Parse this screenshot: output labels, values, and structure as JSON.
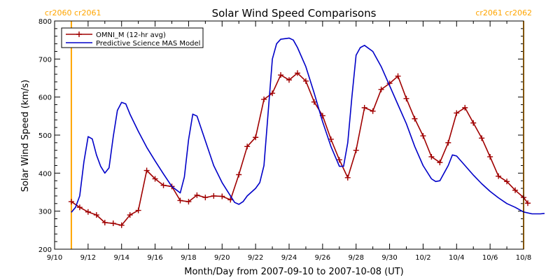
{
  "chart_data": {
    "type": "line",
    "title": "Solar Wind Speed Comparisons",
    "xlabel": "Month/Day from 2007-09-10 to 2007-10-08 (UT)",
    "ylabel": "Solar Wind Speed (km/s)",
    "xlim": [
      "2007-09-10",
      "2007-10-08"
    ],
    "ylim": [
      200,
      800
    ],
    "yticks": [
      200,
      300,
      400,
      500,
      600,
      700,
      800
    ],
    "xticks": [
      {
        "date": "2007-09-10",
        "label": "9/10"
      },
      {
        "date": "2007-09-12",
        "label": "9/12"
      },
      {
        "date": "2007-09-14",
        "label": "9/14"
      },
      {
        "date": "2007-09-16",
        "label": "9/16"
      },
      {
        "date": "2007-09-18",
        "label": "9/18"
      },
      {
        "date": "2007-09-20",
        "label": "9/20"
      },
      {
        "date": "2007-09-22",
        "label": "9/22"
      },
      {
        "date": "2007-09-24",
        "label": "9/24"
      },
      {
        "date": "2007-09-26",
        "label": "9/26"
      },
      {
        "date": "2007-09-28",
        "label": "9/28"
      },
      {
        "date": "2007-09-30",
        "label": "9/30"
      },
      {
        "date": "2007-10-02",
        "label": "10/2"
      },
      {
        "date": "2007-10-04",
        "label": "10/4"
      },
      {
        "date": "2007-10-06",
        "label": "10/6"
      },
      {
        "date": "2007-10-08",
        "label": "10/8"
      }
    ],
    "grid": false,
    "legend_position": "top-left",
    "markers": [
      {
        "date": "2007-09-11 00:00",
        "label": "cr2060 cr2061",
        "color": "#ffa500",
        "label_side": "left"
      },
      {
        "date": "2007-10-08 00:00",
        "label": "cr2061 cr2062",
        "color": "#ffa500",
        "label_side": "right"
      }
    ],
    "series": [
      {
        "name": "OMNI_M (12-hr avg)",
        "color": "#a00000",
        "marker": "plus",
        "points": [
          [
            "2007-09-11 00:00",
            325
          ],
          [
            "2007-09-11 12:00",
            310
          ],
          [
            "2007-09-12 00:00",
            298
          ],
          [
            "2007-09-12 12:00",
            290
          ],
          [
            "2007-09-13 00:00",
            270
          ],
          [
            "2007-09-13 12:00",
            268
          ],
          [
            "2007-09-14 00:00",
            263
          ],
          [
            "2007-09-14 12:00",
            290
          ],
          [
            "2007-09-15 00:00",
            302
          ],
          [
            "2007-09-15 12:00",
            407
          ],
          [
            "2007-09-16 00:00",
            385
          ],
          [
            "2007-09-16 12:00",
            368
          ],
          [
            "2007-09-17 00:00",
            365
          ],
          [
            "2007-09-17 12:00",
            328
          ],
          [
            "2007-09-18 00:00",
            325
          ],
          [
            "2007-09-18 12:00",
            342
          ],
          [
            "2007-09-19 00:00",
            336
          ],
          [
            "2007-09-19 12:00",
            340
          ],
          [
            "2007-09-20 00:00",
            339
          ],
          [
            "2007-09-20 12:00",
            330
          ],
          [
            "2007-09-21 00:00",
            396
          ],
          [
            "2007-09-21 12:00",
            470
          ],
          [
            "2007-09-22 00:00",
            494
          ],
          [
            "2007-09-22 12:00",
            594
          ],
          [
            "2007-09-23 00:00",
            610
          ],
          [
            "2007-09-23 12:00",
            658
          ],
          [
            "2007-09-24 00:00",
            645
          ],
          [
            "2007-09-24 12:00",
            663
          ],
          [
            "2007-09-25 00:00",
            642
          ],
          [
            "2007-09-25 12:00",
            587
          ],
          [
            "2007-09-26 00:00",
            551
          ],
          [
            "2007-09-26 12:00",
            489
          ],
          [
            "2007-09-27 00:00",
            435
          ],
          [
            "2007-09-27 12:00",
            388
          ],
          [
            "2007-09-28 00:00",
            460
          ],
          [
            "2007-09-28 12:00",
            572
          ],
          [
            "2007-09-29 00:00",
            563
          ],
          [
            "2007-09-29 12:00",
            620
          ],
          [
            "2007-09-30 00:00",
            636
          ],
          [
            "2007-09-30 12:00",
            655
          ],
          [
            "2007-10-01 00:00",
            596
          ],
          [
            "2007-10-01 12:00",
            543
          ],
          [
            "2007-10-02 00:00",
            498
          ],
          [
            "2007-10-02 12:00",
            443
          ],
          [
            "2007-10-03 00:00",
            428
          ],
          [
            "2007-10-03 12:00",
            480
          ],
          [
            "2007-10-04 00:00",
            558
          ],
          [
            "2007-10-04 12:00",
            572
          ],
          [
            "2007-10-05 00:00",
            532
          ],
          [
            "2007-10-05 12:00",
            492
          ],
          [
            "2007-10-06 00:00",
            443
          ],
          [
            "2007-10-06 12:00",
            392
          ],
          [
            "2007-10-07 00:00",
            378
          ],
          [
            "2007-10-07 12:00",
            355
          ],
          [
            "2007-10-08 00:00",
            336
          ],
          [
            "2007-10-08 06:00",
            321
          ]
        ]
      },
      {
        "name": "Predictive Science MAS Model",
        "color": "#0000c8",
        "marker": "none",
        "points": [
          [
            "2007-09-11 00:00",
            297
          ],
          [
            "2007-09-11 06:00",
            310
          ],
          [
            "2007-09-11 12:00",
            340
          ],
          [
            "2007-09-11 18:00",
            430
          ],
          [
            "2007-09-12 00:00",
            496
          ],
          [
            "2007-09-12 06:00",
            490
          ],
          [
            "2007-09-12 12:00",
            448
          ],
          [
            "2007-09-12 18:00",
            418
          ],
          [
            "2007-09-13 00:00",
            400
          ],
          [
            "2007-09-13 06:00",
            414
          ],
          [
            "2007-09-13 12:00",
            496
          ],
          [
            "2007-09-13 18:00",
            565
          ],
          [
            "2007-09-14 00:00",
            586
          ],
          [
            "2007-09-14 06:00",
            582
          ],
          [
            "2007-09-14 12:00",
            555
          ],
          [
            "2007-09-15 00:00",
            510
          ],
          [
            "2007-09-15 12:00",
            468
          ],
          [
            "2007-09-16 00:00",
            432
          ],
          [
            "2007-09-16 12:00",
            398
          ],
          [
            "2007-09-17 00:00",
            365
          ],
          [
            "2007-09-17 12:00",
            348
          ],
          [
            "2007-09-17 18:00",
            390
          ],
          [
            "2007-09-18 00:00",
            488
          ],
          [
            "2007-09-18 06:00",
            555
          ],
          [
            "2007-09-18 12:00",
            550
          ],
          [
            "2007-09-19 00:00",
            485
          ],
          [
            "2007-09-19 12:00",
            420
          ],
          [
            "2007-09-20 00:00",
            375
          ],
          [
            "2007-09-20 12:00",
            340
          ],
          [
            "2007-09-20 18:00",
            323
          ],
          [
            "2007-09-21 00:00",
            318
          ],
          [
            "2007-09-21 06:00",
            325
          ],
          [
            "2007-09-21 12:00",
            340
          ],
          [
            "2007-09-22 00:00",
            360
          ],
          [
            "2007-09-22 06:00",
            375
          ],
          [
            "2007-09-22 12:00",
            420
          ],
          [
            "2007-09-22 18:00",
            560
          ],
          [
            "2007-09-23 00:00",
            700
          ],
          [
            "2007-09-23 06:00",
            740
          ],
          [
            "2007-09-23 12:00",
            752
          ],
          [
            "2007-09-24 00:00",
            755
          ],
          [
            "2007-09-24 06:00",
            750
          ],
          [
            "2007-09-24 12:00",
            730
          ],
          [
            "2007-09-25 00:00",
            680
          ],
          [
            "2007-09-25 12:00",
            610
          ],
          [
            "2007-09-26 00:00",
            535
          ],
          [
            "2007-09-26 12:00",
            470
          ],
          [
            "2007-09-27 00:00",
            418
          ],
          [
            "2007-09-27 06:00",
            418
          ],
          [
            "2007-09-27 12:00",
            480
          ],
          [
            "2007-09-27 18:00",
            600
          ],
          [
            "2007-09-28 00:00",
            710
          ],
          [
            "2007-09-28 06:00",
            730
          ],
          [
            "2007-09-28 12:00",
            736
          ],
          [
            "2007-09-29 00:00",
            720
          ],
          [
            "2007-09-29 12:00",
            680
          ],
          [
            "2007-09-30 00:00",
            630
          ],
          [
            "2007-09-30 12:00",
            580
          ],
          [
            "2007-10-01 00:00",
            530
          ],
          [
            "2007-10-01 12:00",
            470
          ],
          [
            "2007-10-02 00:00",
            420
          ],
          [
            "2007-10-02 12:00",
            385
          ],
          [
            "2007-10-02 18:00",
            378
          ],
          [
            "2007-10-03 00:00",
            380
          ],
          [
            "2007-10-03 12:00",
            420
          ],
          [
            "2007-10-03 18:00",
            448
          ],
          [
            "2007-10-04 00:00",
            445
          ],
          [
            "2007-10-04 12:00",
            420
          ],
          [
            "2007-10-05 00:00",
            395
          ],
          [
            "2007-10-05 12:00",
            372
          ],
          [
            "2007-10-06 00:00",
            352
          ],
          [
            "2007-10-06 12:00",
            335
          ],
          [
            "2007-10-07 00:00",
            320
          ],
          [
            "2007-10-07 12:00",
            310
          ],
          [
            "2007-10-08 00:00",
            298
          ],
          [
            "2007-10-08 12:00",
            293
          ],
          [
            "2007-10-09 00:00",
            293
          ],
          [
            "2007-10-09 06:00",
            294
          ]
        ]
      }
    ]
  }
}
